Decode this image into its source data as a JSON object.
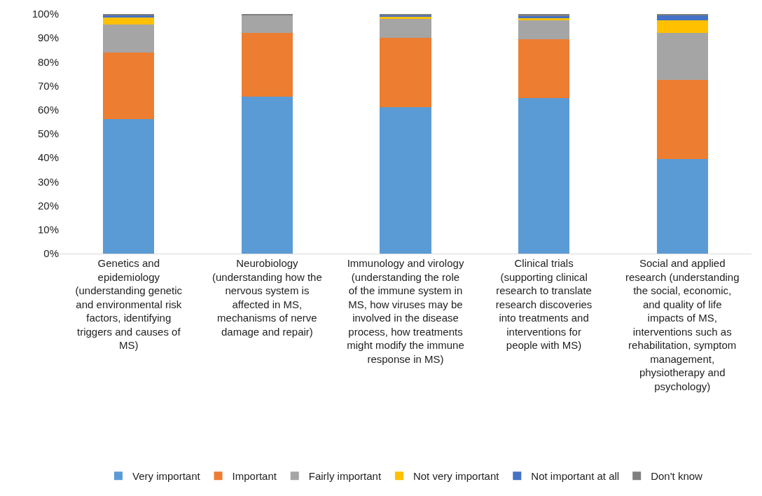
{
  "chart_data": {
    "type": "bar",
    "stacked": true,
    "categories": [
      "Genetics and epidemiology (understanding genetic and environmental risk factors, identifying triggers and causes of MS)",
      "Neurobiology (understanding how the nervous system is affected in MS, mechanisms of nerve damage and repair)",
      "Immunology and virology (understanding the role of the immune system in MS, how viruses may be involved in the disease process, how treatments might modify the immune response in MS)",
      "Clinical trials (supporting clinical research to translate research discoveries into treatments and interventions for people with MS)",
      "Social and applied research (understanding the social, economic, and quality of life impacts of MS, interventions such as rehabilitation, symptom management, physiotherapy and psychology)"
    ],
    "series": [
      {
        "name": "Very important",
        "color": "#5b9bd5",
        "values": [
          56,
          65.5,
          61,
          65,
          39.5
        ]
      },
      {
        "name": "Important",
        "color": "#ed7d31",
        "values": [
          28,
          26.5,
          29,
          24.5,
          33
        ]
      },
      {
        "name": "Fairly important",
        "color": "#a5a5a5",
        "values": [
          11.5,
          7.5,
          8,
          8,
          19.5
        ]
      },
      {
        "name": "Not very important",
        "color": "#ffc000",
        "values": [
          3.3,
          0,
          1,
          1,
          5.5
        ]
      },
      {
        "name": "Not important at all",
        "color": "#4472c4",
        "values": [
          0.5,
          0,
          0.3,
          0.5,
          2
        ]
      },
      {
        "name": "Don't know",
        "color": "#7f7f7f",
        "values": [
          0.7,
          0.5,
          0.7,
          1,
          0.5
        ]
      }
    ],
    "ylim": [
      0,
      100
    ],
    "yticks": [
      {
        "value": 0,
        "label": "0%"
      },
      {
        "value": 10,
        "label": "10%"
      },
      {
        "value": 20,
        "label": "20%"
      },
      {
        "value": 30,
        "label": "30%"
      },
      {
        "value": 40,
        "label": "40%"
      },
      {
        "value": 50,
        "label": "50%"
      },
      {
        "value": 60,
        "label": "60%"
      },
      {
        "value": 70,
        "label": "70%"
      },
      {
        "value": 80,
        "label": "80%"
      },
      {
        "value": 90,
        "label": "90%"
      },
      {
        "value": 100,
        "label": "100%"
      }
    ],
    "grid": false,
    "legend": "bottom"
  }
}
